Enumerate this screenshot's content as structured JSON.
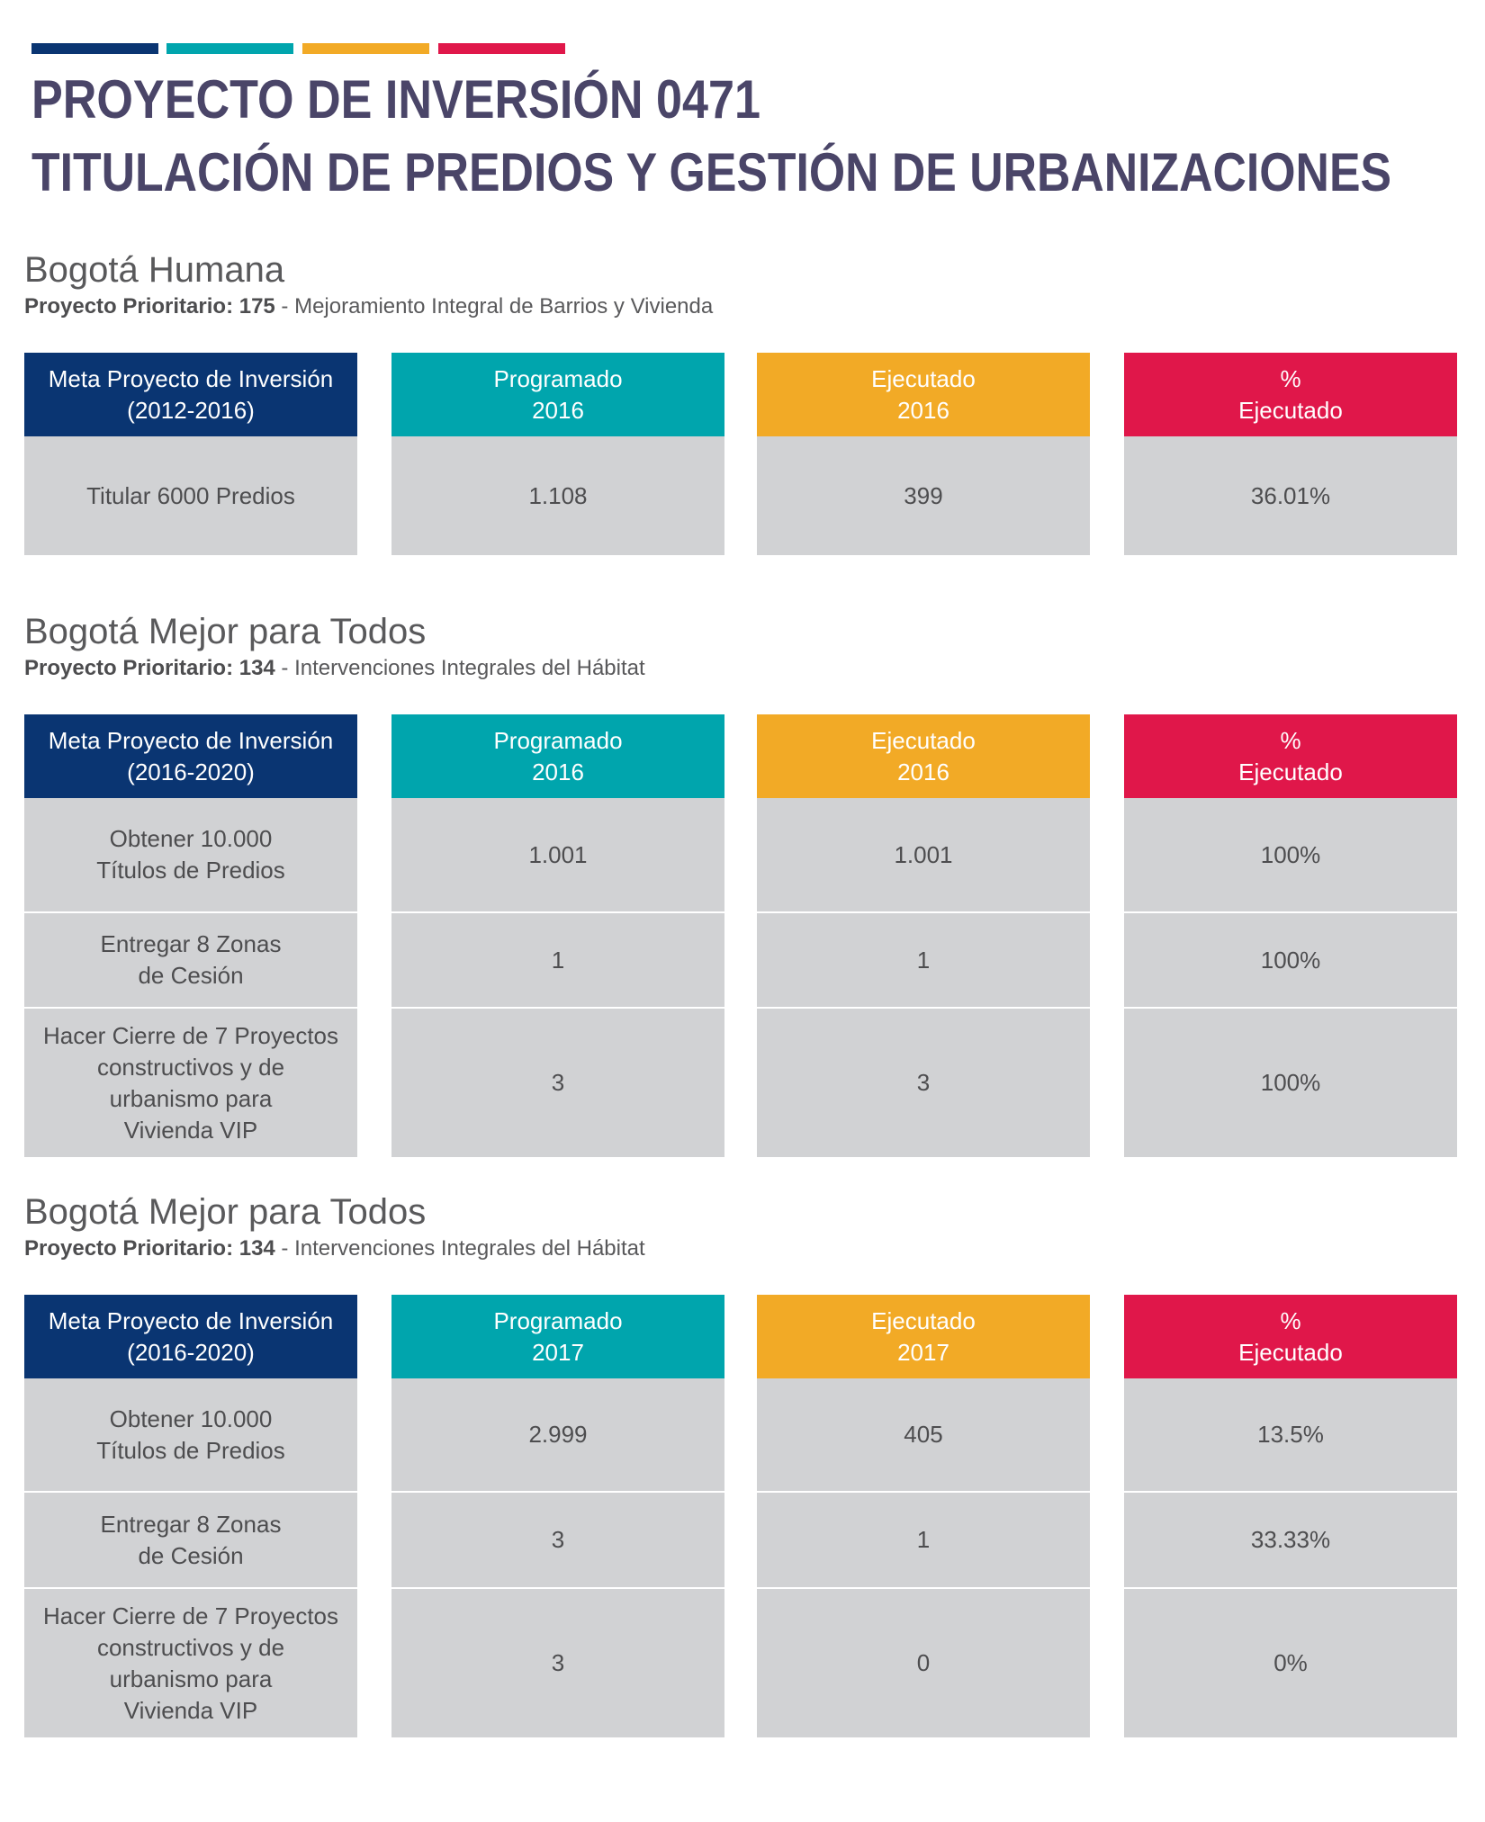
{
  "header": {
    "title_lines": [
      "PROYECTO DE INVERSIÓN 0471",
      "TITULACIÓN DE PREDIOS Y GESTIÓN DE URBANIZACIONES"
    ]
  },
  "sections": [
    {
      "heading": "Bogotá Humana",
      "subtitle_bold": "Proyecto Prioritario: 175",
      "subtitle_text": " - Mejoramiento Integral de Barrios y Vivienda",
      "table": {
        "columns": [
          "Meta Proyecto de Inversión\n(2012-2016)",
          "Programado\n2016",
          "Ejecutado\n2016",
          "%\nEjecutado"
        ],
        "rows": [
          [
            "Titular 6000 Predios",
            "1.108",
            "399",
            "36.01%"
          ]
        ]
      }
    },
    {
      "heading": "Bogotá Mejor para Todos",
      "subtitle_bold": "Proyecto Prioritario: 134",
      "subtitle_text": " - Intervenciones Integrales del Hábitat",
      "table": {
        "columns": [
          "Meta Proyecto de Inversión\n(2016-2020)",
          "Programado\n2016",
          "Ejecutado\n2016",
          "%\nEjecutado"
        ],
        "rows": [
          [
            "Obtener 10.000\nTítulos de Predios",
            "1.001",
            "1.001",
            "100%"
          ],
          [
            "Entregar 8 Zonas\nde Cesión",
            "1",
            "1",
            "100%"
          ],
          [
            "Hacer Cierre de 7 Proyectos\nconstructivos  y de\nurbanismo para\nVivienda VIP",
            "3",
            "3",
            "100%"
          ]
        ]
      }
    },
    {
      "heading": "Bogotá Mejor para Todos",
      "subtitle_bold": "Proyecto Prioritario: 134",
      "subtitle_text": " - Intervenciones Integrales del Hábitat",
      "table": {
        "columns": [
          "Meta Proyecto de Inversión\n(2016-2020)",
          "Programado\n2017",
          "Ejecutado\n2017",
          "%\nEjecutado"
        ],
        "rows": [
          [
            "Obtener 10.000\nTítulos de Predios",
            "2.999",
            "405",
            "13.5%"
          ],
          [
            "Entregar 8 Zonas\nde Cesión",
            "3",
            "1",
            "33.33%"
          ],
          [
            "Hacer Cierre de 7 Proyectos\nconstructivos  y de\nurbanismo para\nVivienda VIP",
            "3",
            "0",
            "0%"
          ]
        ]
      }
    }
  ]
}
